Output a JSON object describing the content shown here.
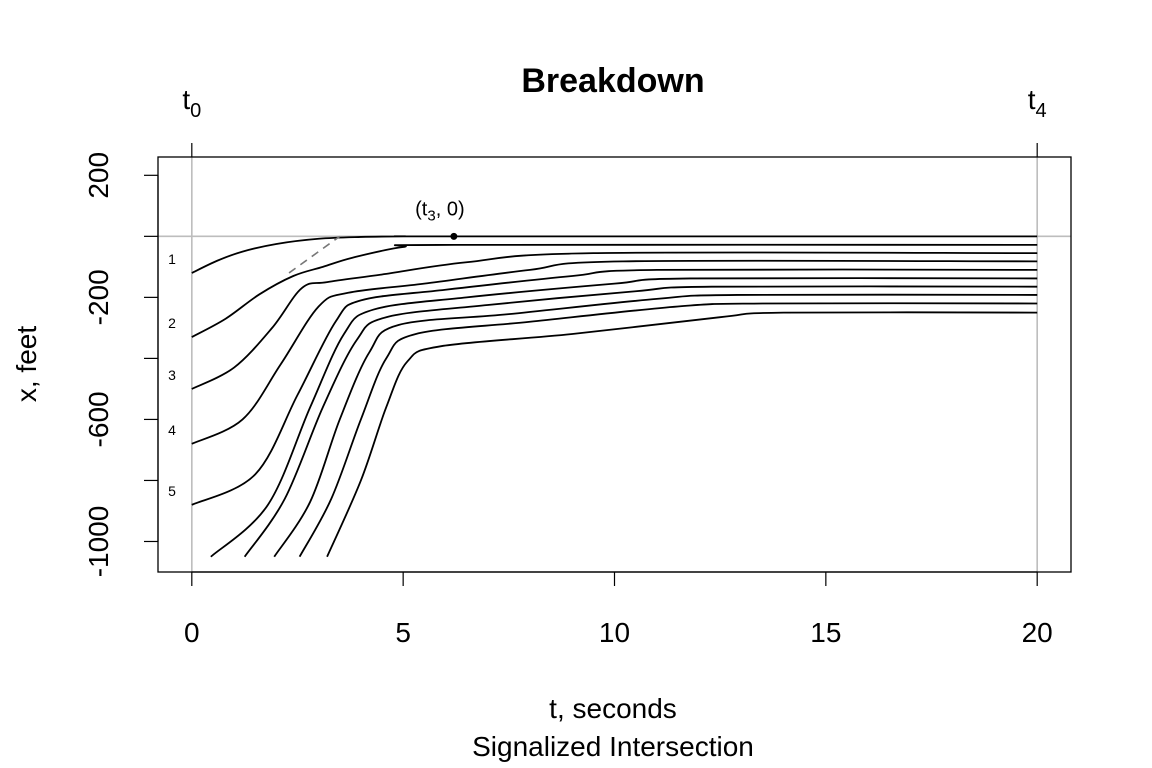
{
  "chart_data": {
    "type": "line",
    "title": "Breakdown",
    "xlabel": "t, seconds",
    "subtitle": "Signalized Intersection",
    "ylabel": "x, feet",
    "xlim": [
      -0.8,
      20.8
    ],
    "ylim": [
      -1100,
      260
    ],
    "x_ticks": [
      0,
      5,
      10,
      15,
      20
    ],
    "y_ticks": [
      200,
      -200,
      -600,
      -1000
    ],
    "y_minor_ticks": [
      0,
      -400,
      -800
    ],
    "grid_vertical": [
      0,
      20
    ],
    "grid_horizontal": [
      0
    ],
    "top_labels": [
      {
        "x": 0,
        "base": "t",
        "sub": "0"
      },
      {
        "x": 20,
        "base": "t",
        "sub": "4"
      }
    ],
    "annotation": {
      "x": 6.2,
      "y": 0,
      "pre": "(t",
      "sub": "3",
      "post": ", 0)"
    },
    "dashed_segment": {
      "x": [
        2.3,
        3.5
      ],
      "y": [
        -120,
        0
      ]
    },
    "vehicle_labels": [
      {
        "text": "1",
        "y": -120
      },
      {
        "text": "2",
        "y": -330
      },
      {
        "text": "3",
        "y": -500
      },
      {
        "text": "4",
        "y": -680
      },
      {
        "text": "5",
        "y": -880
      }
    ],
    "series": [
      {
        "x": [
          0,
          0.6,
          1.2,
          2.0,
          3.0,
          4.0,
          5.0,
          6.2,
          20
        ],
        "y": [
          -120,
          -80,
          -50,
          -25,
          -8,
          -2,
          0,
          0,
          0
        ]
      },
      {
        "x": [
          0,
          0.8,
          1.6,
          2.4,
          3.1,
          3.8,
          5.0,
          6.2,
          20
        ],
        "y": [
          -330,
          -270,
          -190,
          -130,
          -100,
          -70,
          -35,
          -28,
          -28
        ]
      },
      {
        "x": [
          0,
          1.0,
          1.9,
          2.6,
          3.2,
          4.5,
          6.5,
          9.5,
          20
        ],
        "y": [
          -500,
          -430,
          -300,
          -170,
          -150,
          -125,
          -85,
          -55,
          -55
        ]
      },
      {
        "x": [
          0,
          1.2,
          2.1,
          3.0,
          3.7,
          5.5,
          8.0,
          10.2,
          20
        ],
        "y": [
          -680,
          -600,
          -420,
          -230,
          -185,
          -155,
          -110,
          -82,
          -82
        ]
      },
      {
        "x": [
          0,
          1.5,
          2.5,
          3.4,
          4.0,
          6.0,
          9.0,
          11.0,
          20
        ],
        "y": [
          -880,
          -780,
          -520,
          -280,
          -210,
          -175,
          -130,
          -110,
          -110
        ]
      },
      {
        "x": [
          0.45,
          1.8,
          2.8,
          3.6,
          4.3,
          6.5,
          10.0,
          11.8,
          20
        ],
        "y": [
          -1050,
          -880,
          -560,
          -320,
          -240,
          -200,
          -155,
          -138,
          -138
        ]
      },
      {
        "x": [
          1.25,
          2.2,
          3.1,
          3.9,
          4.6,
          7.0,
          10.5,
          12.3,
          20
        ],
        "y": [
          -1050,
          -860,
          -560,
          -340,
          -265,
          -225,
          -180,
          -165,
          -165
        ]
      },
      {
        "x": [
          1.95,
          2.8,
          3.5,
          4.2,
          4.9,
          7.5,
          11.0,
          12.9,
          20
        ],
        "y": [
          -1050,
          -870,
          -600,
          -380,
          -290,
          -255,
          -205,
          -192,
          -192
        ]
      },
      {
        "x": [
          2.55,
          3.3,
          4.0,
          4.6,
          5.3,
          8.0,
          11.5,
          13.5,
          20
        ],
        "y": [
          -1050,
          -860,
          -600,
          -400,
          -320,
          -280,
          -230,
          -220,
          -220
        ]
      },
      {
        "x": [
          3.2,
          4.0,
          4.6,
          5.1,
          5.9,
          9.0,
          12.5,
          14.0,
          20
        ],
        "y": [
          -1050,
          -800,
          -560,
          -410,
          -360,
          -320,
          -265,
          -250,
          -250
        ]
      }
    ]
  }
}
